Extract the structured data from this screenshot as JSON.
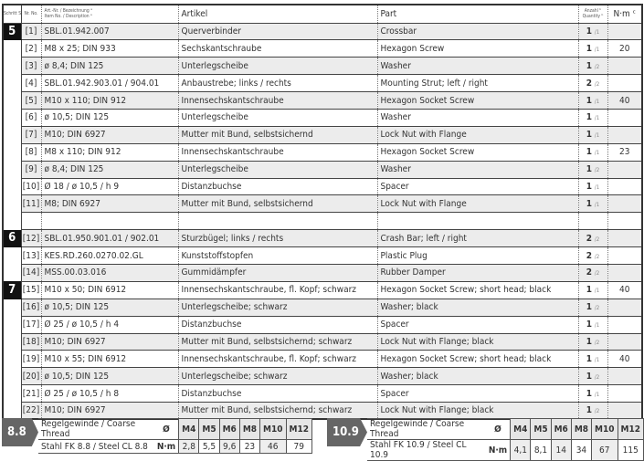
{
  "header": {
    "step": "Schritt Step",
    "nr": "Nr. No.",
    "artnr_de": "Art.-Nr. / Bezeichnung ᵃ",
    "artnr_en": "Item No. / Description ᵃ",
    "artikel": "Artikel",
    "part": "Part",
    "qty_de": "Anzahl ᵇ",
    "qty_en": "Quantity ᵇ",
    "nm": "N·m ᶜ"
  },
  "rows": [
    {
      "step": "5",
      "nr": "[1]",
      "art": "SBL.01.942.007",
      "de": "Querverbinder",
      "en": "Crossbar",
      "q": "1",
      "qt": "/1",
      "nm": ""
    },
    {
      "step": "",
      "nr": "[2]",
      "art": "M8 x 25; DIN 933",
      "de": "Sechskantschraube",
      "en": "Hexagon Screw",
      "q": "1",
      "qt": "/1",
      "nm": "20"
    },
    {
      "step": "",
      "nr": "[3]",
      "art": "ø 8,4; DIN 125",
      "de": "Unterlegscheibe",
      "en": "Washer",
      "q": "1",
      "qt": "/2",
      "nm": ""
    },
    {
      "step": "",
      "nr": "[4]",
      "art": "SBL.01.942.903.01 / 904.01",
      "de": "Anbaustrebe; links / rechts",
      "en": "Mounting Strut; left / right",
      "q": "2",
      "qt": "/2",
      "nm": ""
    },
    {
      "step": "",
      "nr": "[5]",
      "art": "M10 x 110; DIN 912",
      "de": "Innensechskantschraube",
      "en": "Hexagon Socket Screw",
      "q": "1",
      "qt": "/1",
      "nm": "40"
    },
    {
      "step": "",
      "nr": "[6]",
      "art": "ø 10,5; DIN 125",
      "de": "Unterlegscheibe",
      "en": "Washer",
      "q": "1",
      "qt": "/1",
      "nm": ""
    },
    {
      "step": "",
      "nr": "[7]",
      "art": "M10; DIN 6927",
      "de": "Mutter mit Bund, selbstsichernd",
      "en": "Lock Nut with Flange",
      "q": "1",
      "qt": "/1",
      "nm": ""
    },
    {
      "step": "",
      "nr": "[8]",
      "art": "M8 x 110; DIN 912",
      "de": "Innensechskantschraube",
      "en": "Hexagon Socket Screw",
      "q": "1",
      "qt": "/1",
      "nm": "23"
    },
    {
      "step": "",
      "nr": "[9]",
      "art": "ø 8,4; DIN 125",
      "de": "Unterlegscheibe",
      "en": "Washer",
      "q": "1",
      "qt": "/2",
      "nm": ""
    },
    {
      "step": "",
      "nr": "[10]",
      "art": "Ø 18 / ø 10,5 / h 9",
      "de": "Distanzbuchse",
      "en": "Spacer",
      "q": "1",
      "qt": "/1",
      "nm": ""
    },
    {
      "step": "",
      "nr": "[11]",
      "art": "M8; DIN 6927",
      "de": "Mutter mit Bund, selbstsichernd",
      "en": "Lock Nut with Flange",
      "q": "1",
      "qt": "/1",
      "nm": ""
    },
    {
      "step": "",
      "nr": "",
      "art": "",
      "de": "",
      "en": "",
      "q": "",
      "qt": "",
      "nm": ""
    },
    {
      "step": "6",
      "nr": "[12]",
      "art": "SBL.01.950.901.01 / 902.01",
      "de": "Sturzbügel; links / rechts",
      "en": "Crash Bar; left / right",
      "q": "2",
      "qt": "/2",
      "nm": ""
    },
    {
      "step": "",
      "nr": "[13]",
      "art": "KES.RD.260.0270.02.GL",
      "de": "Kunststoffstopfen",
      "en": "Plastic Plug",
      "q": "2",
      "qt": "/2",
      "nm": ""
    },
    {
      "step": "",
      "nr": "[14]",
      "art": "MSS.00.03.016",
      "de": "Gummidämpfer",
      "en": "Rubber Damper",
      "q": "2",
      "qt": "/2",
      "nm": ""
    },
    {
      "step": "7",
      "nr": "[15]",
      "art": "M10 x 50; DIN 6912",
      "de": "Innensechskantschraube, fl. Kopf; schwarz",
      "en": "Hexagon Socket Screw; short head; black",
      "q": "1",
      "qt": "/1",
      "nm": "40"
    },
    {
      "step": "",
      "nr": "[16]",
      "art": "ø 10,5; DIN 125",
      "de": "Unterlegscheibe; schwarz",
      "en": "Washer; black",
      "q": "1",
      "qt": "/2",
      "nm": ""
    },
    {
      "step": "",
      "nr": "[17]",
      "art": "Ø 25 / ø 10,5 / h 4",
      "de": "Distanzbuchse",
      "en": "Spacer",
      "q": "1",
      "qt": "/1",
      "nm": ""
    },
    {
      "step": "",
      "nr": "[18]",
      "art": "M10; DIN 6927",
      "de": "Mutter mit Bund, selbstsichernd; schwarz",
      "en": "Lock Nut with Flange; black",
      "q": "1",
      "qt": "/2",
      "nm": ""
    },
    {
      "step": "",
      "nr": "[19]",
      "art": "M10 x 55; DIN 6912",
      "de": "Innensechskantschraube, fl. Kopf; schwarz",
      "en": "Hexagon Socket Screw; short head; black",
      "q": "1",
      "qt": "/1",
      "nm": "40"
    },
    {
      "step": "",
      "nr": "[20]",
      "art": "ø 10,5; DIN 125",
      "de": "Unterlegscheibe; schwarz",
      "en": "Washer; black",
      "q": "1",
      "qt": "/2",
      "nm": ""
    },
    {
      "step": "",
      "nr": "[21]",
      "art": "Ø 25 / ø 10,5 / h 8",
      "de": "Distanzbuchse",
      "en": "Spacer",
      "q": "1",
      "qt": "/1",
      "nm": ""
    },
    {
      "step": "",
      "nr": "[22]",
      "art": "M10; DIN 6927",
      "de": "Mutter mit Bund, selbstsichernd; schwarz",
      "en": "Lock Nut with Flange; black",
      "q": "1",
      "qt": "/2",
      "nm": ""
    }
  ],
  "torque": [
    {
      "grade": "8.8",
      "thread_label": "Regelgewinde / Coarse Thread",
      "thread_sym": "Ø",
      "steel_label": "Stahl FK 8.8 / Steel CL 8.8",
      "unit": "N·m",
      "sizes": [
        "M4",
        "M5",
        "M6",
        "M8",
        "M10",
        "M12"
      ],
      "values": [
        "2,8",
        "5,5",
        "9,6",
        "23",
        "46",
        "79"
      ]
    },
    {
      "grade": "10.9",
      "thread_label": "Regelgewinde / Coarse Thread",
      "thread_sym": "Ø",
      "steel_label": "Stahl FK 10.9 / Steel CL 10.9",
      "unit": "N·m",
      "sizes": [
        "M4",
        "M5",
        "M6",
        "M8",
        "M10",
        "M12"
      ],
      "values": [
        "4,1",
        "8,1",
        "14",
        "34",
        "67",
        "115"
      ]
    }
  ]
}
